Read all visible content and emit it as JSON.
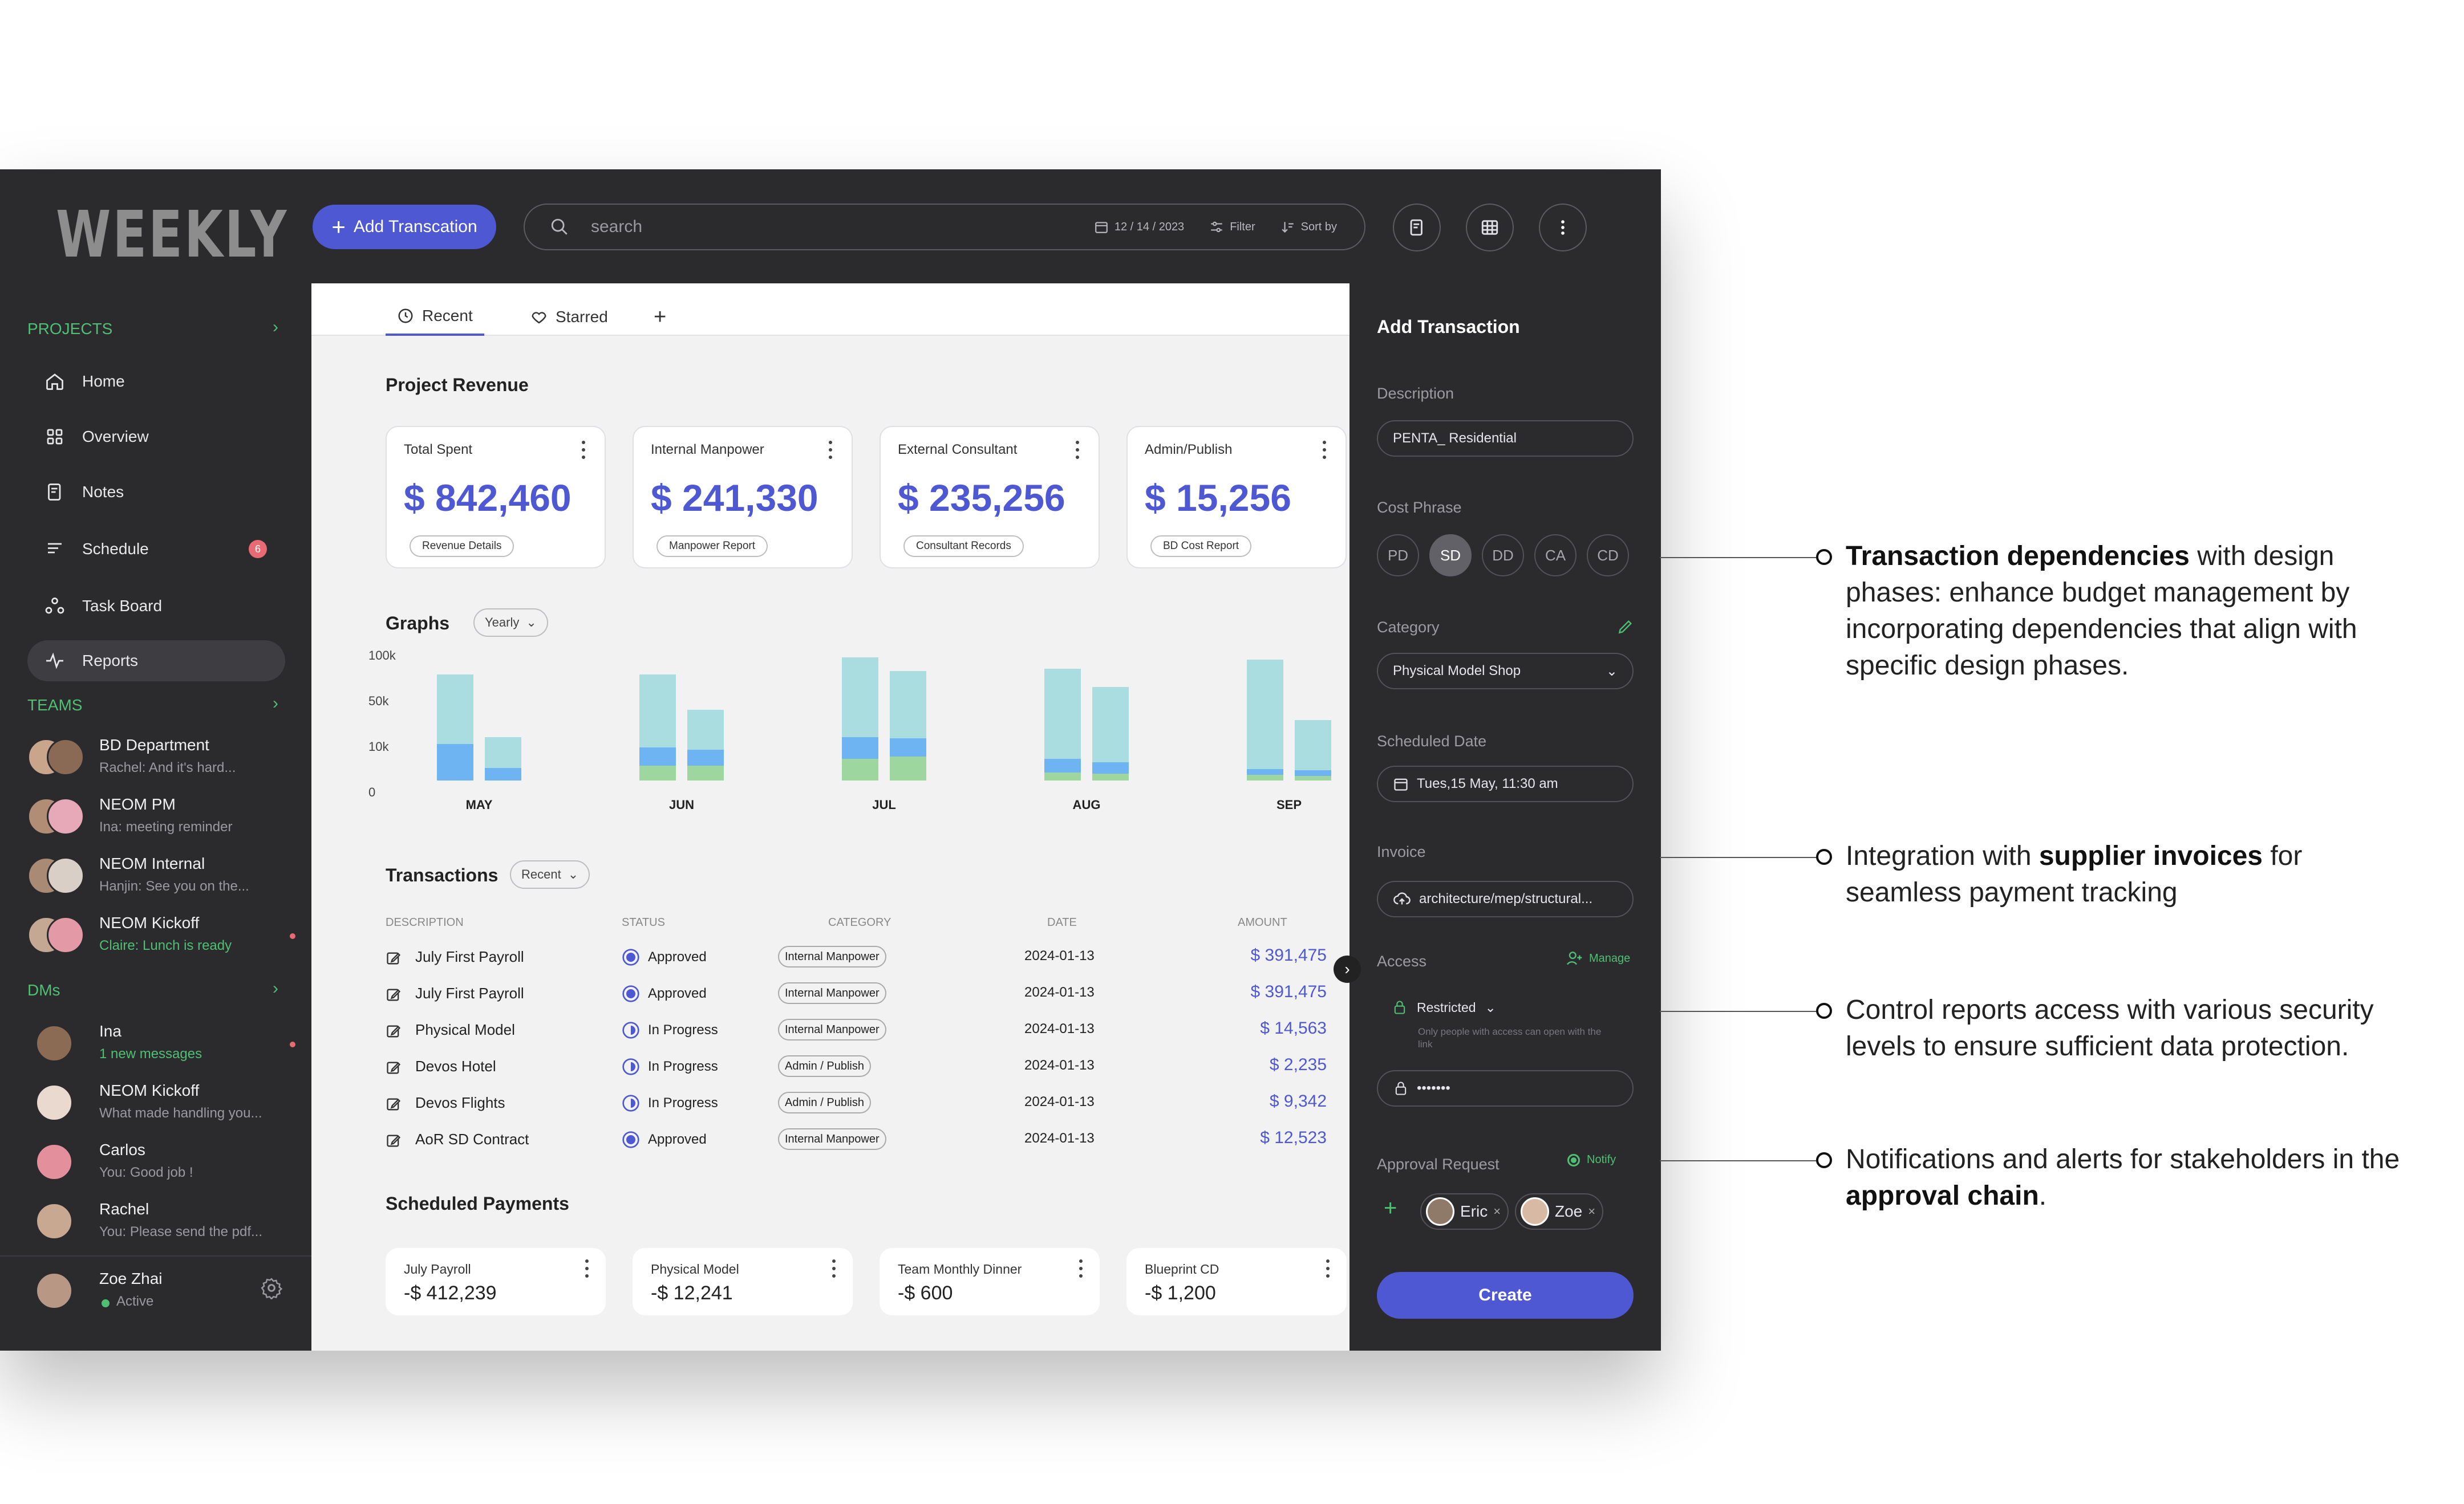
{
  "app": {
    "logo": "WEEKLY"
  },
  "header": {
    "add_button": "Add Transcation",
    "search_placeholder": "search",
    "date": "12 / 14 / 2023",
    "filter": "Filter",
    "sort": "Sort by"
  },
  "sidebar": {
    "projects_label": "PROJECTS",
    "nav": [
      {
        "label": "Home",
        "icon": "home-icon"
      },
      {
        "label": "Overview",
        "icon": "grid-icon"
      },
      {
        "label": "Notes",
        "icon": "notes-icon"
      },
      {
        "label": "Schedule",
        "icon": "schedule-icon",
        "badge": "6"
      },
      {
        "label": "Task Board",
        "icon": "taskboard-icon"
      },
      {
        "label": "Reports",
        "icon": "pulse-icon",
        "active": true
      }
    ],
    "teams_label": "TEAMS",
    "teams": [
      {
        "name": "BD Department",
        "msg": "Rachel: And it's hard..."
      },
      {
        "name": "NEOM PM",
        "msg": "Ina: meeting reminder"
      },
      {
        "name": "NEOM Internal",
        "msg": "Hanjin: See you on the..."
      },
      {
        "name": "NEOM Kickoff",
        "msg": "Claire: Lunch is ready",
        "unread": true
      }
    ],
    "dms_label": "DMs",
    "dms": [
      {
        "name": "Ina",
        "msg": "1 new messages",
        "unread": true
      },
      {
        "name": "NEOM Kickoff",
        "msg": "What made handling you..."
      },
      {
        "name": "Carlos",
        "msg": "You: Good job !"
      },
      {
        "name": "Rachel",
        "msg": "You: Please send the pdf..."
      }
    ],
    "user": {
      "name": "Zoe Zhai",
      "status": "Active"
    }
  },
  "main": {
    "tabs": [
      "Recent",
      "Starred"
    ],
    "revenue_title": "Project Revenue",
    "cards": [
      {
        "label": "Total Spent",
        "value": "$ 842,460",
        "pill": "Revenue Details"
      },
      {
        "label": "Internal Manpower",
        "value": "$ 241,330",
        "pill": "Manpower Report"
      },
      {
        "label": "External Consultant",
        "value": "$ 235,256",
        "pill": "Consultant Records"
      },
      {
        "label": "Admin/Publish",
        "value": "$ 15,256",
        "pill": "BD Cost Report"
      }
    ],
    "graphs_title": "Graphs",
    "graphs_range": "Yearly",
    "transactions_title": "Transactions",
    "transactions_filter": "Recent",
    "columns": [
      "DESCRIPTION",
      "STATUS",
      "CATEGORY",
      "DATE",
      "AMOUNT"
    ],
    "rows": [
      {
        "desc": "July First Payroll",
        "status": "Approved",
        "category": "Internal Manpower",
        "date": "2024-01-13",
        "amount": "$ 391,475"
      },
      {
        "desc": "July First Payroll",
        "status": "Approved",
        "category": "Internal Manpower",
        "date": "2024-01-13",
        "amount": "$ 391,475"
      },
      {
        "desc": "Physical Model",
        "status": "In Progress",
        "category": "Internal Manpower",
        "date": "2024-01-13",
        "amount": "$ 14,563"
      },
      {
        "desc": "Devos Hotel",
        "status": "In Progress",
        "category": "Admin / Publish",
        "date": "2024-01-13",
        "amount": "$ 2,235"
      },
      {
        "desc": "Devos Flights",
        "status": "In Progress",
        "category": "Admin / Publish",
        "date": "2024-01-13",
        "amount": "$ 9,342"
      },
      {
        "desc": "AoR SD Contract",
        "status": "Approved",
        "category": "Internal Manpower",
        "date": "2024-01-13",
        "amount": "$ 12,523"
      }
    ],
    "scheduled_title": "Scheduled Payments",
    "payments": [
      {
        "label": "July Payroll",
        "value": "-$ 412,239"
      },
      {
        "label": "Physical Model",
        "value": "-$ 12,241"
      },
      {
        "label": "Team Monthly Dinner",
        "value": "-$ 600"
      },
      {
        "label": "Blueprint CD",
        "value": "-$ 1,200"
      }
    ]
  },
  "chart_data": {
    "type": "bar",
    "yticks": [
      "100k",
      "50k",
      "10k",
      "0"
    ],
    "categories": [
      "MAY",
      "JUN",
      "JUL",
      "AUG",
      "SEP"
    ],
    "colors": {
      "base": "#a9dde0",
      "mid": "#6fb4f2",
      "low": "#9ed6a0"
    },
    "groups": [
      [
        {
          "total": 0.93,
          "mid": 0.32,
          "low": 0
        },
        {
          "total": 0.38,
          "mid": 0.11,
          "low": 0
        }
      ],
      [
        {
          "total": 0.93,
          "mid": 0.16,
          "low": 0.13
        },
        {
          "total": 0.62,
          "mid": 0.14,
          "low": 0.13
        }
      ],
      [
        {
          "total": 1.08,
          "mid": 0.19,
          "low": 0.19
        },
        {
          "total": 0.96,
          "mid": 0.16,
          "low": 0.21
        }
      ],
      [
        {
          "total": 0.98,
          "mid": 0.12,
          "low": 0.07
        },
        {
          "total": 0.82,
          "mid": 0.1,
          "low": 0.06
        }
      ],
      [
        {
          "total": 1.06,
          "mid": 0.05,
          "low": 0.05
        },
        {
          "total": 0.53,
          "mid": 0.05,
          "low": 0.04
        }
      ]
    ]
  },
  "panel": {
    "title": "Add Transaction",
    "description_label": "Description",
    "description_value": "PENTA_ Residential",
    "phase_label": "Cost Phrase",
    "phases": [
      "PD",
      "SD",
      "DD",
      "CA",
      "CD"
    ],
    "category_label": "Category",
    "category_value": "Physical Model Shop",
    "date_label": "Scheduled Date",
    "date_value": "Tues,15 May, 11:30 am",
    "invoice_label": "Invoice",
    "invoice_value": "architecture/mep/structural...",
    "access_label": "Access",
    "manage": "Manage",
    "restricted": "Restricted",
    "restricted_note": "Only people with access can open with the link",
    "password": "•••••••",
    "approval_label": "Approval Request",
    "notify": "Notify",
    "approvers": [
      "Eric",
      "Zoe"
    ],
    "create": "Create"
  },
  "annotations": [
    {
      "bold": "Transaction dependencies",
      "rest": " with design phases: enhance budget management by incorporating dependencies that align with specific design phases."
    },
    {
      "pre": "Integration with ",
      "bold": "supplier invoices",
      "rest": " for seamless payment tracking"
    },
    {
      "text": "Control reports access with various security levels to ensure sufficient data protection."
    },
    {
      "pre": "Notifications and alerts for stakeholders in the ",
      "bold": "approval chain",
      "rest": "."
    }
  ]
}
